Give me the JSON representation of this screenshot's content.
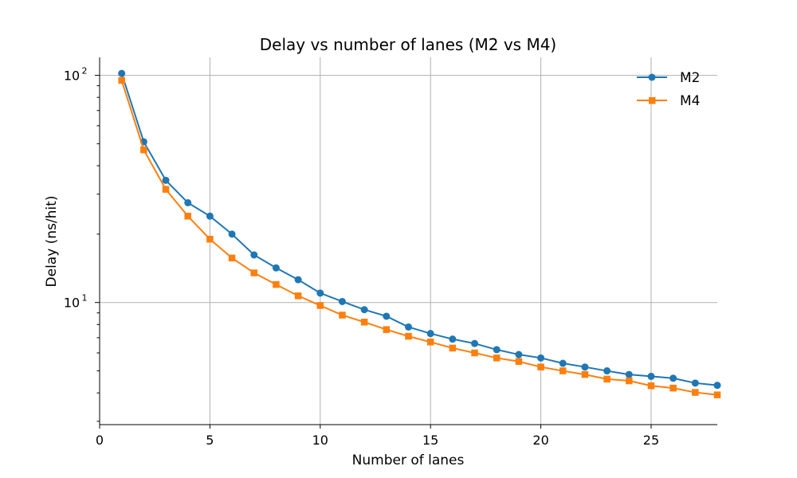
{
  "chart_data": {
    "type": "line",
    "title": "Delay vs number of lanes (M2 vs M4)",
    "xlabel": "Number of lanes",
    "ylabel": "Delay (ns/hit)",
    "xlim": [
      0,
      28
    ],
    "ylim": [
      2.9,
      120
    ],
    "yscale": "log",
    "grid": true,
    "legend": "top-right",
    "x_ticks": [
      0,
      5,
      10,
      15,
      20,
      25
    ],
    "y_ticks": [
      {
        "value": 10,
        "base": "10",
        "exp": "1"
      },
      {
        "value": 100,
        "base": "10",
        "exp": "2"
      }
    ],
    "x": [
      1,
      2,
      3,
      4,
      5,
      6,
      7,
      8,
      9,
      10,
      11,
      12,
      13,
      14,
      15,
      16,
      17,
      18,
      19,
      20,
      21,
      22,
      23,
      24,
      25,
      26,
      27,
      28
    ],
    "series": [
      {
        "name": "M2",
        "color": "#1f77b4",
        "marker": "circle",
        "values": [
          102,
          51,
          34.5,
          27.5,
          24,
          20,
          16.2,
          14.2,
          12.6,
          11,
          10.1,
          9.3,
          8.7,
          7.8,
          7.3,
          6.9,
          6.6,
          6.2,
          5.9,
          5.7,
          5.4,
          5.2,
          5.0,
          4.82,
          4.73,
          4.64,
          4.42,
          4.32
        ]
      },
      {
        "name": "M4",
        "color": "#ff7f0e",
        "marker": "square",
        "values": [
          95,
          47,
          31.5,
          24,
          19,
          15.7,
          13.5,
          12,
          10.7,
          9.7,
          8.8,
          8.2,
          7.6,
          7.1,
          6.7,
          6.3,
          6.0,
          5.7,
          5.5,
          5.2,
          5.0,
          4.82,
          4.6,
          4.52,
          4.3,
          4.2,
          4.02,
          3.92
        ]
      }
    ]
  }
}
